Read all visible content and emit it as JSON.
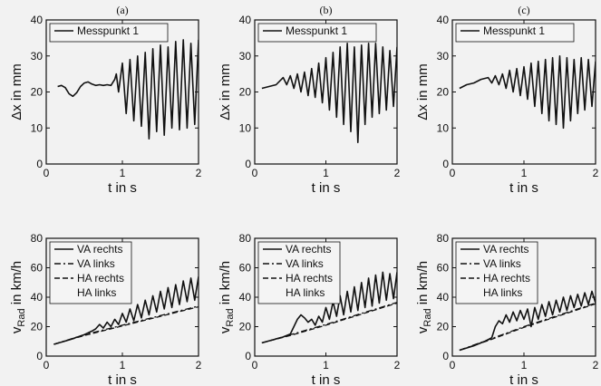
{
  "chart_data": [
    {
      "type": "line",
      "panel": "(a)",
      "xlabel": "t in s",
      "ylabel": "Δx in mm",
      "xlim": [
        0,
        2
      ],
      "ylim": [
        0,
        40
      ],
      "xticks": [
        "0",
        "1",
        "2"
      ],
      "yticks": [
        "0",
        "10",
        "20",
        "30",
        "40"
      ],
      "legend": "top-left",
      "series": [
        {
          "name": "Messpunkt 1",
          "x": [
            0.15,
            0.2,
            0.25,
            0.3,
            0.35,
            0.4,
            0.45,
            0.5,
            0.55,
            0.6,
            0.65,
            0.7,
            0.75,
            0.8,
            0.85,
            0.9,
            0.92,
            0.95,
            1.0,
            1.05,
            1.1,
            1.15,
            1.2,
            1.25,
            1.3,
            1.35,
            1.4,
            1.45,
            1.5,
            1.55,
            1.6,
            1.65,
            1.7,
            1.75,
            1.8,
            1.85,
            1.9,
            1.95,
            2.0
          ],
          "y": [
            21.5,
            21.8,
            21.2,
            19.5,
            18.8,
            19.8,
            21.5,
            22.5,
            22.8,
            22.2,
            21.8,
            22.0,
            21.8,
            22.0,
            21.8,
            23.5,
            25.0,
            20.0,
            28.0,
            14.0,
            29.0,
            12.0,
            30.0,
            10.5,
            31.0,
            7.0,
            32.0,
            9.0,
            33.0,
            8.0,
            32.5,
            10.0,
            34.0,
            9.5,
            34.5,
            10.0,
            33.5,
            11.0,
            34.5
          ]
        }
      ]
    },
    {
      "type": "line",
      "panel": "(b)",
      "xlabel": "t in s",
      "ylabel": "Δx in mm",
      "xlim": [
        0,
        2
      ],
      "ylim": [
        0,
        40
      ],
      "xticks": [
        "0",
        "1",
        "2"
      ],
      "yticks": [
        "0",
        "10",
        "20",
        "30",
        "40"
      ],
      "legend": "top-left",
      "series": [
        {
          "name": "Messpunkt 1",
          "x": [
            0.1,
            0.2,
            0.3,
            0.4,
            0.45,
            0.5,
            0.55,
            0.6,
            0.65,
            0.7,
            0.75,
            0.8,
            0.85,
            0.9,
            0.95,
            1.0,
            1.05,
            1.1,
            1.15,
            1.2,
            1.25,
            1.3,
            1.35,
            1.4,
            1.45,
            1.5,
            1.55,
            1.6,
            1.65,
            1.7,
            1.75,
            1.8,
            1.85,
            1.9,
            1.95,
            2.0
          ],
          "y": [
            21.0,
            21.5,
            22.0,
            24.0,
            22.0,
            24.5,
            21.0,
            25.0,
            20.0,
            25.5,
            19.0,
            26.5,
            18.5,
            28.0,
            17.0,
            29.5,
            15.0,
            31.0,
            13.0,
            32.5,
            11.0,
            33.5,
            9.0,
            32.5,
            6.0,
            33.0,
            11.0,
            33.5,
            13.0,
            33.5,
            14.0,
            32.5,
            15.0,
            31.5,
            16.0,
            32.5
          ]
        }
      ]
    },
    {
      "type": "line",
      "panel": "(c)",
      "xlabel": "t in s",
      "ylabel": "Δx in mm",
      "xlim": [
        0,
        2
      ],
      "ylim": [
        0,
        40
      ],
      "xticks": [
        "0",
        "1",
        "2"
      ],
      "yticks": [
        "0",
        "10",
        "20",
        "30",
        "40"
      ],
      "legend": "top-left",
      "series": [
        {
          "name": "Messpunkt 1",
          "x": [
            0.1,
            0.2,
            0.3,
            0.4,
            0.5,
            0.55,
            0.6,
            0.65,
            0.7,
            0.75,
            0.8,
            0.85,
            0.9,
            0.95,
            1.0,
            1.05,
            1.1,
            1.15,
            1.2,
            1.25,
            1.3,
            1.35,
            1.4,
            1.45,
            1.5,
            1.55,
            1.6,
            1.65,
            1.7,
            1.75,
            1.8,
            1.85,
            1.9,
            1.95,
            2.0
          ],
          "y": [
            21.0,
            22.0,
            22.5,
            23.5,
            24.0,
            22.5,
            24.5,
            22.0,
            25.0,
            21.0,
            26.0,
            20.0,
            26.5,
            19.0,
            27.0,
            18.0,
            28.0,
            16.0,
            28.5,
            14.0,
            29.0,
            12.0,
            29.5,
            11.0,
            30.0,
            10.0,
            29.5,
            12.0,
            29.0,
            14.0,
            29.5,
            15.0,
            29.0,
            16.0,
            28.5
          ]
        }
      ]
    },
    {
      "type": "line",
      "panel": "(a)",
      "xlabel": "t in s",
      "ylabel_main": "v",
      "ylabel_sub": "Rad",
      "ylabel_unit": " in km/h",
      "xlim": [
        0,
        2
      ],
      "ylim": [
        0,
        80
      ],
      "xticks": [
        "0",
        "1",
        "2"
      ],
      "yticks": [
        "0",
        "20",
        "40",
        "60",
        "80"
      ],
      "legend": "top-left",
      "series": [
        {
          "name": "VA rechts",
          "style": "solid",
          "x": [
            0.1,
            0.3,
            0.5,
            0.6,
            0.65,
            0.7,
            0.75,
            0.8,
            0.85,
            0.9,
            0.95,
            1.0,
            1.05,
            1.1,
            1.15,
            1.2,
            1.25,
            1.3,
            1.35,
            1.4,
            1.45,
            1.5,
            1.55,
            1.6,
            1.65,
            1.7,
            1.75,
            1.8,
            1.85,
            1.9,
            1.95,
            2.0
          ],
          "y": [
            8.0,
            11.0,
            14.5,
            17.0,
            18.5,
            21.5,
            19.0,
            23.0,
            20.0,
            25.0,
            21.5,
            29.0,
            23.0,
            32.0,
            24.0,
            35.0,
            26.0,
            38.0,
            28.0,
            41.0,
            30.0,
            44.0,
            32.0,
            46.5,
            33.0,
            48.5,
            35.0,
            51.0,
            37.0,
            53.0,
            38.0,
            54.0
          ]
        },
        {
          "name": "VA links",
          "style": "dash-dot",
          "x": [
            0.1,
            0.5,
            1.0,
            1.5,
            2.0
          ],
          "y": [
            8.0,
            14.5,
            21.0,
            27.5,
            34.0
          ]
        },
        {
          "name": "HA rechts",
          "style": "dashed",
          "x": [
            0.1,
            0.5,
            1.0,
            1.5,
            2.0
          ],
          "y": [
            8.0,
            14.0,
            20.5,
            27.0,
            33.5
          ]
        },
        {
          "name": "HA links",
          "style": "none",
          "x": [],
          "y": []
        }
      ]
    },
    {
      "type": "line",
      "panel": "(b)",
      "xlabel": "t in s",
      "ylabel_main": "v",
      "ylabel_sub": "Rad",
      "ylabel_unit": " in km/h",
      "xlim": [
        0,
        2
      ],
      "ylim": [
        0,
        80
      ],
      "xticks": [
        "0",
        "1",
        "2"
      ],
      "yticks": [
        "0",
        "20",
        "40",
        "60",
        "80"
      ],
      "legend": "top-left",
      "series": [
        {
          "name": "VA rechts",
          "style": "solid",
          "x": [
            0.1,
            0.4,
            0.5,
            0.55,
            0.6,
            0.65,
            0.7,
            0.75,
            0.8,
            0.85,
            0.9,
            0.95,
            1.0,
            1.05,
            1.1,
            1.15,
            1.2,
            1.25,
            1.3,
            1.35,
            1.4,
            1.45,
            1.5,
            1.55,
            1.6,
            1.65,
            1.7,
            1.75,
            1.8,
            1.85,
            1.9,
            1.95,
            2.0
          ],
          "y": [
            9.0,
            13.0,
            15.0,
            20.0,
            25.0,
            28.0,
            26.0,
            23.0,
            25.0,
            21.0,
            27.0,
            23.0,
            33.0,
            25.0,
            37.0,
            27.0,
            41.0,
            28.0,
            44.0,
            30.0,
            47.0,
            31.0,
            50.0,
            33.0,
            53.0,
            34.0,
            55.0,
            36.0,
            57.0,
            38.0,
            56.0,
            39.0,
            57.0
          ]
        },
        {
          "name": "VA links",
          "style": "dash-dot",
          "x": [
            0.1,
            0.5,
            1.0,
            1.5,
            2.0
          ],
          "y": [
            9.0,
            14.5,
            21.5,
            29.0,
            36.5
          ]
        },
        {
          "name": "HA rechts",
          "style": "dashed",
          "x": [
            0.1,
            0.5,
            1.0,
            1.5,
            2.0
          ],
          "y": [
            9.0,
            14.0,
            21.0,
            28.5,
            36.0
          ]
        },
        {
          "name": "HA links",
          "style": "none",
          "x": [],
          "y": []
        }
      ]
    },
    {
      "type": "line",
      "panel": "(c)",
      "xlabel": "t in s",
      "ylabel_main": "v",
      "ylabel_sub": "Rad",
      "ylabel_unit": " in km/h",
      "xlim": [
        0,
        2
      ],
      "ylim": [
        0,
        80
      ],
      "xticks": [
        "0",
        "1",
        "2"
      ],
      "yticks": [
        "0",
        "20",
        "40",
        "60",
        "80"
      ],
      "legend": "top-left",
      "series": [
        {
          "name": "VA rechts",
          "style": "solid",
          "x": [
            0.1,
            0.3,
            0.45,
            0.55,
            0.6,
            0.65,
            0.7,
            0.75,
            0.8,
            0.85,
            0.9,
            0.95,
            1.0,
            1.05,
            1.1,
            1.15,
            1.2,
            1.25,
            1.3,
            1.35,
            1.4,
            1.45,
            1.5,
            1.55,
            1.6,
            1.65,
            1.7,
            1.75,
            1.8,
            1.85,
            1.9,
            1.95,
            2.0
          ],
          "y": [
            4.0,
            7.0,
            10.0,
            12.5,
            20.0,
            24.0,
            22.0,
            28.0,
            23.0,
            30.0,
            24.0,
            31.0,
            25.0,
            32.0,
            20.0,
            33.0,
            25.0,
            35.0,
            27.0,
            37.0,
            28.0,
            38.0,
            30.0,
            40.0,
            31.0,
            41.0,
            33.0,
            42.0,
            34.0,
            43.0,
            35.0,
            44.0,
            36.0
          ]
        },
        {
          "name": "VA links",
          "style": "dash-dot",
          "x": [
            0.1,
            0.5,
            1.0,
            1.5,
            2.0
          ],
          "y": [
            4.0,
            11.0,
            20.0,
            28.0,
            36.0
          ]
        },
        {
          "name": "HA rechts",
          "style": "dashed",
          "x": [
            0.1,
            0.5,
            1.0,
            1.5,
            2.0
          ],
          "y": [
            4.0,
            10.5,
            19.5,
            27.5,
            35.5
          ]
        },
        {
          "name": "HA links",
          "style": "none",
          "x": [],
          "y": []
        }
      ]
    }
  ]
}
